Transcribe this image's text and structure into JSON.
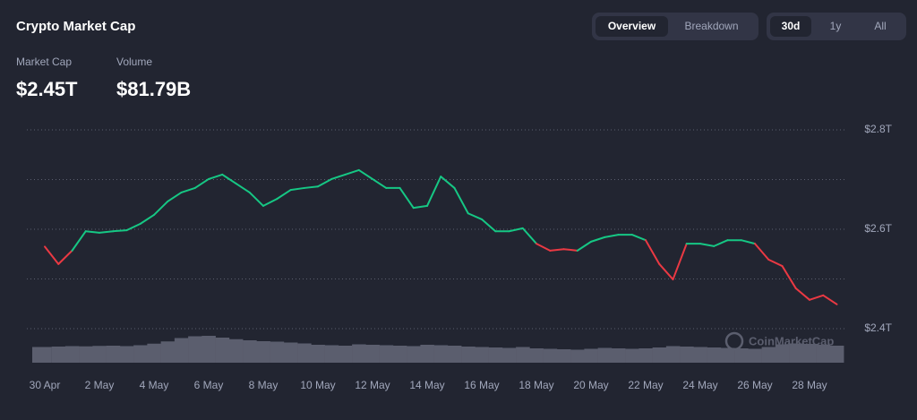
{
  "header": {
    "title": "Crypto Market Cap"
  },
  "stats": [
    {
      "label": "Market Cap",
      "value": "$2.45T"
    },
    {
      "label": "Volume",
      "value": "$81.79B"
    }
  ],
  "view_tabs": {
    "items": [
      "Overview",
      "Breakdown"
    ],
    "selected": 0
  },
  "range_tabs": {
    "items": [
      "30d",
      "1y",
      "All"
    ],
    "selected": 0
  },
  "watermark": "CoinMarketCap",
  "chart_data": {
    "type": "line",
    "categories": [
      "30 Apr",
      null,
      null,
      null,
      "2 May",
      null,
      null,
      null,
      "4 May",
      null,
      null,
      null,
      "6 May",
      null,
      null,
      null,
      "8 May",
      null,
      null,
      null,
      "10 May",
      null,
      null,
      null,
      "12 May",
      null,
      null,
      null,
      "14 May",
      null,
      null,
      null,
      "16 May",
      null,
      null,
      null,
      "18 May",
      null,
      null,
      null,
      "20 May",
      null,
      null,
      null,
      "22 May",
      null,
      null,
      null,
      "24 May",
      null,
      null,
      null,
      "26 May",
      null,
      null,
      null,
      "28 May",
      null,
      null
    ],
    "values": [
      2.565,
      2.53,
      2.557,
      2.596,
      2.593,
      2.596,
      2.598,
      2.611,
      2.629,
      2.656,
      2.674,
      2.683,
      2.701,
      2.71,
      2.692,
      2.674,
      2.647,
      2.661,
      2.679,
      2.683,
      2.686,
      2.701,
      2.71,
      2.719,
      2.701,
      2.683,
      2.683,
      2.643,
      2.647,
      2.706,
      2.683,
      2.632,
      2.62,
      2.596,
      2.596,
      2.602,
      2.571,
      2.557,
      2.56,
      2.557,
      2.575,
      2.584,
      2.589,
      2.589,
      2.578,
      2.53,
      2.499,
      2.571,
      2.571,
      2.566,
      2.578,
      2.578,
      2.571,
      2.539,
      2.526,
      2.481,
      2.458,
      2.467,
      2.449
    ],
    "up_color": "#16c784",
    "down_color": "#ea3943",
    "ylim": [
      2.4,
      2.8
    ],
    "yticks": [
      {
        "value": 2.4,
        "label": "$2.4T"
      },
      {
        "value": 2.6,
        "label": "$2.6T"
      },
      {
        "value": 2.8,
        "label": "$2.8T"
      }
    ],
    "ygrid": [
      2.4,
      2.5,
      2.6,
      2.7,
      2.8
    ],
    "grid": true,
    "volume": {
      "color": "#5b5e6e",
      "values": [
        70,
        72,
        74,
        73,
        75,
        76,
        74,
        78,
        85,
        95,
        110,
        118,
        120,
        112,
        105,
        100,
        96,
        94,
        90,
        86,
        80,
        78,
        76,
        82,
        80,
        78,
        76,
        74,
        80,
        78,
        76,
        72,
        70,
        68,
        66,
        70,
        64,
        62,
        60,
        58,
        62,
        66,
        64,
        62,
        64,
        68,
        74,
        72,
        70,
        68,
        66,
        64,
        62,
        70,
        82,
        86,
        84,
        80,
        76
      ]
    }
  }
}
